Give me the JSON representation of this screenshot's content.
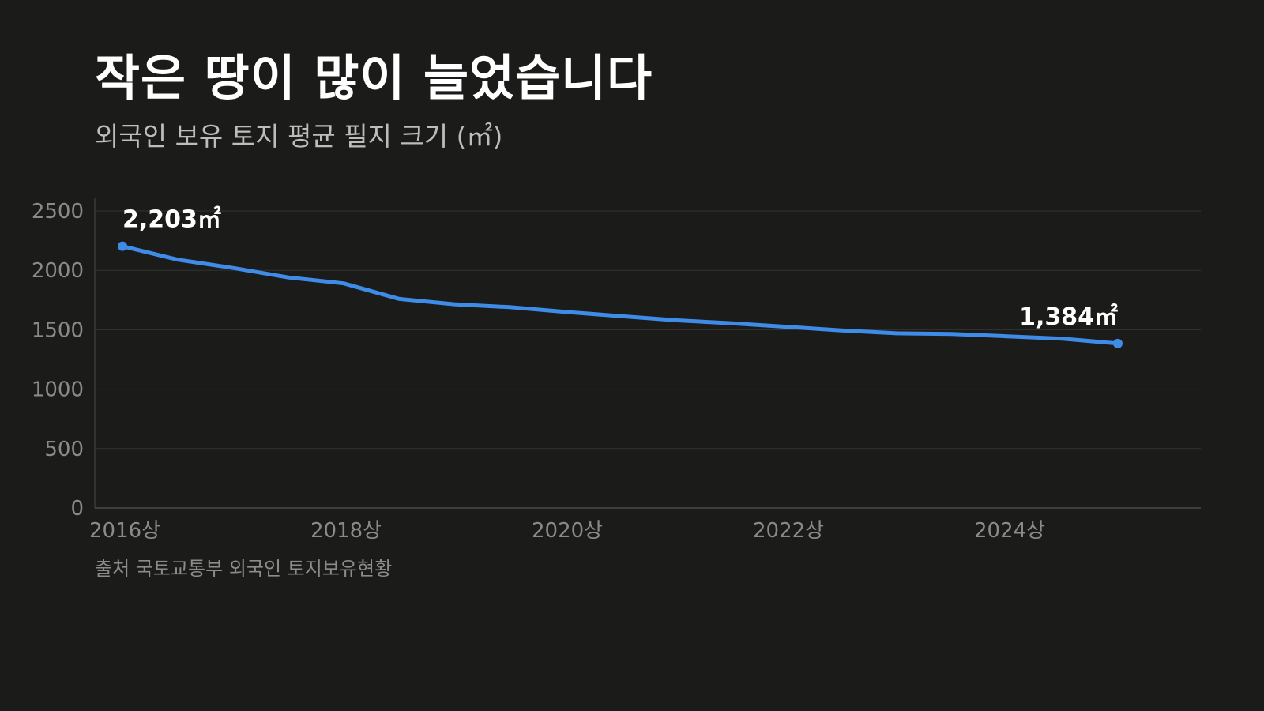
{
  "title": "작은 땅이 많이 늘었습니다",
  "subtitle": "외국인 보유 토지 평균 필지 크기 (㎡)",
  "source": "출처 국토교통부 외국인 토지보유현황",
  "colors": {
    "background": "#1b1b1a",
    "line": "#3f8be8",
    "grid": "#333333",
    "axis": "#4a4a4a"
  },
  "chart_data": {
    "type": "line",
    "title": "작은 땅이 많이 늘었습니다",
    "subtitle": "외국인 보유 토지 평균 필지 크기 (㎡)",
    "xlabel": "",
    "ylabel": "",
    "ylim": [
      0,
      2500
    ],
    "yticks": [
      0,
      500,
      1000,
      1500,
      2000,
      2500
    ],
    "xtick_labels": [
      "2016상",
      "2018상",
      "2020상",
      "2022상",
      "2024상"
    ],
    "grid": true,
    "legend": "none",
    "series": [
      {
        "values": [
          2203,
          2090,
          2020,
          1940,
          1890,
          1760,
          1715,
          1690,
          1650,
          1615,
          1580,
          1555,
          1525,
          1495,
          1470,
          1465,
          1445,
          1425,
          1384
        ]
      }
    ],
    "annotations": [
      {
        "point_index": 0,
        "text": "2,203㎡"
      },
      {
        "point_index": 18,
        "text": "1,384㎡"
      }
    ]
  }
}
